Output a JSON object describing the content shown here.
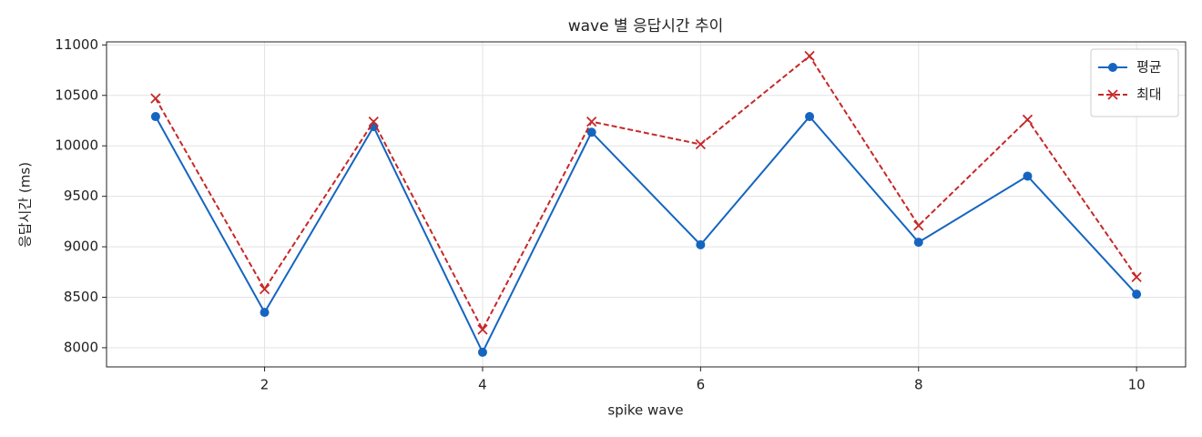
{
  "chart_data": {
    "type": "line",
    "title": "wave 별 응답시간 추이",
    "xlabel": "spike wave",
    "ylabel": "응답시간 (ms)",
    "x": [
      1,
      2,
      3,
      4,
      5,
      6,
      7,
      8,
      9,
      10
    ],
    "series": [
      {
        "name": "평균",
        "color": "#1565c0",
        "marker": "o",
        "dash": "solid",
        "values": [
          10290,
          8350,
          10190,
          7955,
          10135,
          9020,
          10290,
          9045,
          9700,
          8530
        ]
      },
      {
        "name": "최대",
        "color": "#c62828",
        "marker": "x",
        "dash": "dashed",
        "values": [
          10470,
          8580,
          10240,
          8180,
          10240,
          10015,
          10890,
          9210,
          10260,
          8700
        ]
      }
    ],
    "xlim": [
      0.55,
      10.45
    ],
    "ylim": [
      7810,
      11030
    ],
    "xticks": [
      2,
      4,
      6,
      8,
      10
    ],
    "yticks": [
      8000,
      8500,
      9000,
      9500,
      10000,
      10500,
      11000
    ],
    "grid": true,
    "legend": "upper right"
  }
}
